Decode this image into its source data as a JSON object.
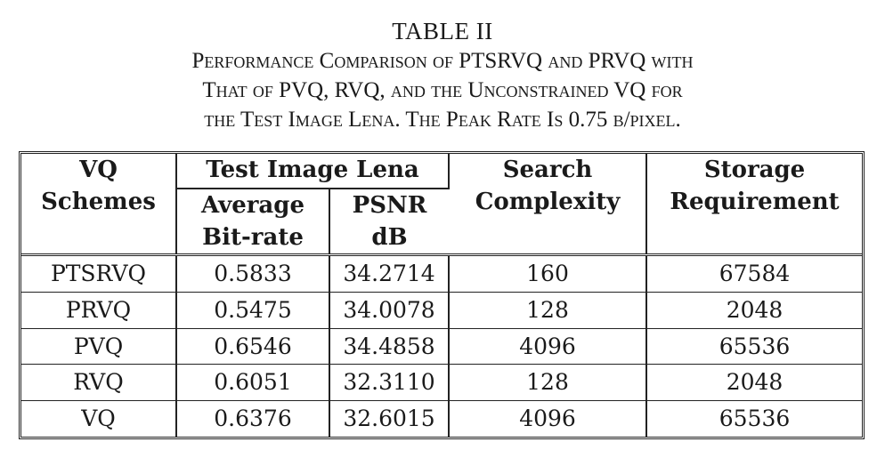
{
  "caption": {
    "title": "TABLE II",
    "lines": [
      "Performance Comparison of PTSRVQ and PRVQ with",
      "That of PVQ, RVQ, and the Unconstrained VQ for",
      "the Test Image Lena. The Peak Rate Is 0.75 b/pixel."
    ]
  },
  "table": {
    "headers": {
      "schemes_line1": "VQ",
      "schemes_line2": "Schemes",
      "group": "Test Image Lena",
      "bitrate_line1": "Average",
      "bitrate_line2": "Bit-rate",
      "psnr_line1": "PSNR",
      "psnr_line2": "dB",
      "search_line1": "Search",
      "search_line2": "Complexity",
      "storage_line1": "Storage",
      "storage_line2": "Requirement"
    },
    "rows": [
      {
        "scheme": "PTSRVQ",
        "bitrate": "0.5833",
        "psnr": "34.2714",
        "search": "160",
        "storage": "67584"
      },
      {
        "scheme": "PRVQ",
        "bitrate": "0.5475",
        "psnr": "34.0078",
        "search": "128",
        "storage": "2048"
      },
      {
        "scheme": "PVQ",
        "bitrate": "0.6546",
        "psnr": "34.4858",
        "search": "4096",
        "storage": "65536"
      },
      {
        "scheme": "RVQ",
        "bitrate": "0.6051",
        "psnr": "32.3110",
        "search": "128",
        "storage": "2048"
      },
      {
        "scheme": "VQ",
        "bitrate": "0.6376",
        "psnr": "32.6015",
        "search": "4096",
        "storage": "65536"
      }
    ]
  }
}
